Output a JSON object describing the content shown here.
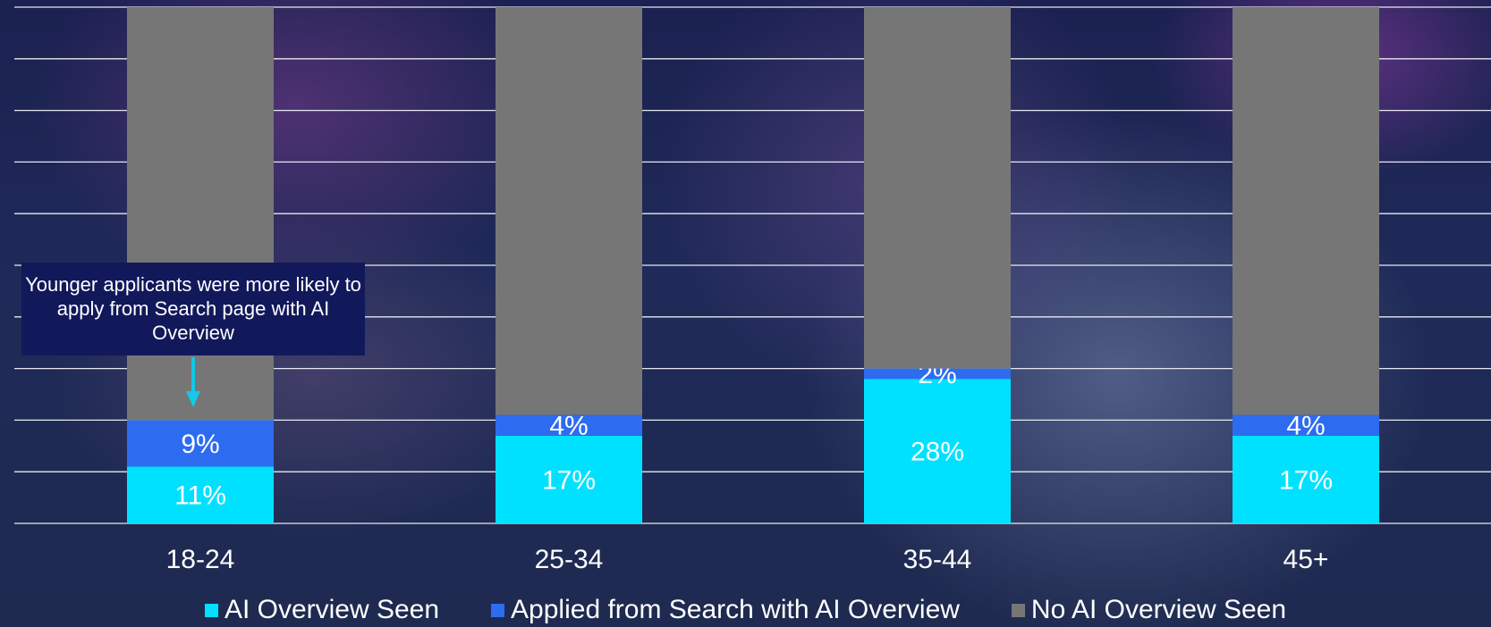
{
  "chart_data": {
    "type": "bar",
    "stacked": true,
    "categories": [
      "18-24",
      "25-34",
      "35-44",
      "45+"
    ],
    "series": [
      {
        "name": "AI Overview Seen",
        "color": "#00e1ff",
        "values": [
          11,
          17,
          28,
          17
        ],
        "labels": [
          "11%",
          "17%",
          "28%",
          "17%"
        ]
      },
      {
        "name": "Applied from Search with AI Overview",
        "color": "#2d6cf0",
        "values": [
          9,
          4,
          2,
          4
        ],
        "labels": [
          "9%",
          "4%",
          "2%",
          "4%"
        ]
      },
      {
        "name": "No AI Overview Seen",
        "color": "#767676",
        "values": [
          80,
          79,
          70,
          79
        ]
      }
    ],
    "ylim": [
      0,
      100
    ],
    "grid": true,
    "legend_position": "bottom",
    "annotation": {
      "text": "Younger applicants were more likely to apply from Search page with AI Overview",
      "target_category": "18-24",
      "arrow_color": "#14c8e8"
    }
  }
}
